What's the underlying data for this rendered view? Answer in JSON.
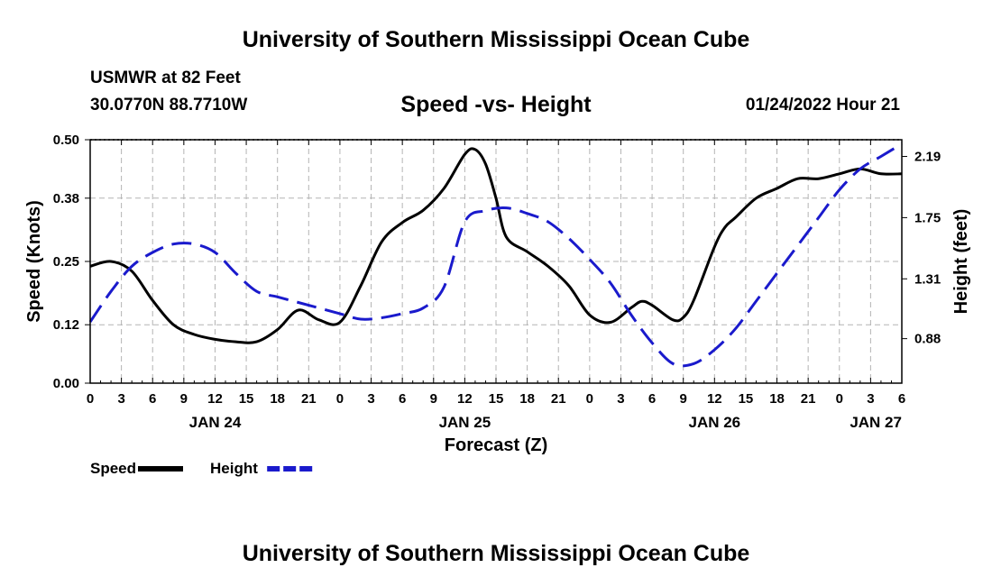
{
  "header": {
    "title": "University of Southern Mississippi Ocean Cube",
    "station": "USMWR at 82 Feet",
    "coords": "30.0770N  88.7710W",
    "subtitle": "Speed -vs- Height",
    "timestamp": "01/24/2022 Hour 21"
  },
  "footer": {
    "title": "University of Southern Mississippi Ocean Cube"
  },
  "chart_data": {
    "type": "line",
    "title": "Speed -vs- Height",
    "xlabel": "Forecast (Z)",
    "ylabel": "Speed (Knots)",
    "y2label": "Height (feet)",
    "xlim": [
      0,
      78
    ],
    "ylim": [
      0,
      0.5
    ],
    "y2lim": [
      0.56,
      2.31
    ],
    "x_ticks": [
      {
        "h": 0,
        "label": "0"
      },
      {
        "h": 3,
        "label": "3"
      },
      {
        "h": 6,
        "label": "6"
      },
      {
        "h": 9,
        "label": "9"
      },
      {
        "h": 12,
        "label": "12"
      },
      {
        "h": 15,
        "label": "15"
      },
      {
        "h": 18,
        "label": "18"
      },
      {
        "h": 21,
        "label": "21"
      },
      {
        "h": 24,
        "label": "0"
      },
      {
        "h": 27,
        "label": "3"
      },
      {
        "h": 30,
        "label": "6"
      },
      {
        "h": 33,
        "label": "9"
      },
      {
        "h": 36,
        "label": "12"
      },
      {
        "h": 39,
        "label": "15"
      },
      {
        "h": 42,
        "label": "18"
      },
      {
        "h": 45,
        "label": "21"
      },
      {
        "h": 48,
        "label": "0"
      },
      {
        "h": 51,
        "label": "3"
      },
      {
        "h": 54,
        "label": "6"
      },
      {
        "h": 57,
        "label": "9"
      },
      {
        "h": 60,
        "label": "12"
      },
      {
        "h": 63,
        "label": "15"
      },
      {
        "h": 66,
        "label": "18"
      },
      {
        "h": 69,
        "label": "21"
      },
      {
        "h": 72,
        "label": "0"
      },
      {
        "h": 75,
        "label": "3"
      },
      {
        "h": 78,
        "label": "6"
      }
    ],
    "date_labels": [
      {
        "h": 12,
        "label": "JAN 24"
      },
      {
        "h": 36,
        "label": "JAN 25"
      },
      {
        "h": 60,
        "label": "JAN 26"
      },
      {
        "h": 75.5,
        "label": "JAN 27"
      }
    ],
    "y_ticks": [
      {
        "v": 0.0,
        "label": "0.00"
      },
      {
        "v": 0.12,
        "label": "0.12"
      },
      {
        "v": 0.25,
        "label": "0.25"
      },
      {
        "v": 0.38,
        "label": "0.38"
      },
      {
        "v": 0.5,
        "label": "0.50"
      }
    ],
    "y2_ticks": [
      {
        "v": 0.88,
        "label": "0.88"
      },
      {
        "v": 1.31,
        "label": "1.31"
      },
      {
        "v": 1.75,
        "label": "1.75"
      },
      {
        "v": 2.19,
        "label": "2.19"
      }
    ],
    "series": [
      {
        "name": "Speed",
        "axis": "left",
        "color": "#000000",
        "dash": false,
        "x": [
          0,
          2,
          4,
          6,
          8,
          10,
          12,
          14,
          16,
          18,
          20,
          22,
          24,
          26,
          28,
          30,
          32,
          34,
          36,
          37,
          38,
          39,
          40,
          42,
          44,
          46,
          48,
          50,
          52,
          53,
          54,
          56,
          57,
          58,
          60,
          61,
          62,
          64,
          66,
          68,
          70,
          72,
          74,
          76,
          78
        ],
        "values": [
          0.24,
          0.25,
          0.23,
          0.17,
          0.12,
          0.1,
          0.09,
          0.085,
          0.085,
          0.11,
          0.15,
          0.13,
          0.125,
          0.2,
          0.29,
          0.33,
          0.355,
          0.4,
          0.47,
          0.48,
          0.45,
          0.38,
          0.3,
          0.27,
          0.24,
          0.2,
          0.14,
          0.125,
          0.155,
          0.168,
          0.16,
          0.13,
          0.135,
          0.17,
          0.28,
          0.32,
          0.34,
          0.38,
          0.4,
          0.42,
          0.42,
          0.43,
          0.44,
          0.43,
          0.43
        ]
      },
      {
        "name": "Height",
        "axis": "right",
        "color": "#1a1acc",
        "dash": true,
        "x": [
          0,
          2,
          4,
          6,
          8,
          10,
          12,
          14,
          16,
          18,
          20,
          22,
          24,
          26,
          28,
          30,
          32,
          34,
          36,
          38,
          40,
          42,
          44,
          46,
          48,
          50,
          52,
          54,
          56,
          58,
          60,
          62,
          64,
          66,
          68,
          70,
          72,
          74,
          76,
          78
        ],
        "values": [
          1.0,
          1.22,
          1.4,
          1.5,
          1.56,
          1.56,
          1.5,
          1.35,
          1.22,
          1.18,
          1.14,
          1.1,
          1.06,
          1.02,
          1.03,
          1.06,
          1.1,
          1.25,
          1.72,
          1.8,
          1.82,
          1.78,
          1.72,
          1.6,
          1.45,
          1.28,
          1.05,
          0.85,
          0.7,
          0.7,
          0.8,
          0.95,
          1.15,
          1.35,
          1.55,
          1.75,
          1.95,
          2.1,
          2.19,
          2.28
        ]
      }
    ],
    "legend": [
      {
        "label": "Speed",
        "color": "#000000",
        "dash": false
      },
      {
        "label": "Height",
        "color": "#1a1acc",
        "dash": true
      }
    ],
    "grid": true,
    "legend_position": "bottom-left"
  }
}
